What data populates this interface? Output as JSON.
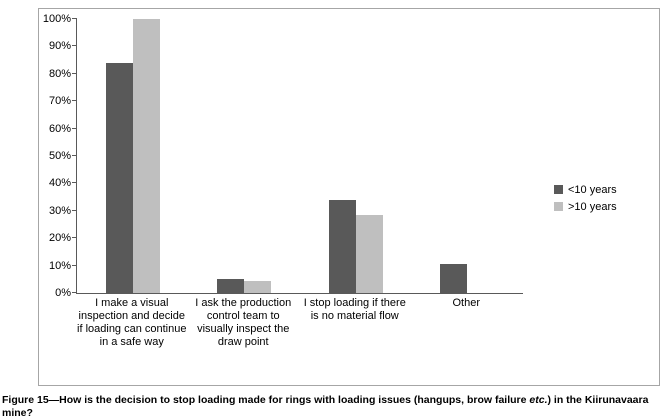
{
  "figure": {
    "caption_pre": "Figure 15—How is the decision to stop loading made for rings with loading issues (hangups, brow failure ",
    "caption_italic": "etc.",
    "caption_post": ") in the Kiirunavaara mine?"
  },
  "chart_data": {
    "type": "bar",
    "title": "",
    "xlabel": "",
    "ylabel": "",
    "categories": [
      "I make a visual inspection and decide if loading can continue in a safe way",
      "I ask the production control team to visually inspect the draw point",
      "I stop loading if there is no material flow",
      "Other"
    ],
    "series": [
      {
        "name": "<10 years",
        "color": "#595959",
        "values": [
          84,
          5,
          34,
          10.5
        ]
      },
      {
        "name": ">10 years",
        "color": "#bfbfbf",
        "values": [
          100,
          4.5,
          28.5,
          0
        ]
      }
    ],
    "ylim": [
      0,
      100
    ],
    "ytick_step": 10,
    "ytick_format": "percent",
    "grid": false,
    "legend_position": "right"
  }
}
